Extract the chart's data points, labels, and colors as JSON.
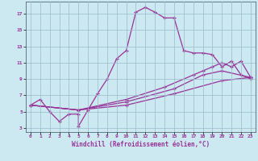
{
  "xlabel": "Windchill (Refroidissement éolien,°C)",
  "bg_color": "#cce8f0",
  "line_color": "#993399",
  "grid_color": "#99bbcc",
  "xlim": [
    -0.5,
    23.5
  ],
  "ylim": [
    2.5,
    18.5
  ],
  "xticks": [
    0,
    1,
    2,
    3,
    4,
    5,
    6,
    7,
    8,
    9,
    10,
    11,
    12,
    13,
    14,
    15,
    16,
    17,
    18,
    19,
    20,
    21,
    22,
    23
  ],
  "yticks": [
    3,
    5,
    7,
    9,
    11,
    13,
    15,
    17
  ],
  "curve1_x": [
    0,
    1,
    2,
    3,
    4,
    5,
    5,
    6,
    7,
    8,
    9,
    10,
    11,
    12,
    13,
    14,
    15,
    16,
    17,
    18,
    19,
    20,
    21,
    22,
    23
  ],
  "curve1_y": [
    5.8,
    6.5,
    5.0,
    3.8,
    4.7,
    4.7,
    3.2,
    5.2,
    7.2,
    9.0,
    11.5,
    12.5,
    17.2,
    17.8,
    17.2,
    16.5,
    16.5,
    12.5,
    12.2,
    12.2,
    12.0,
    10.5,
    11.2,
    9.5,
    9.0
  ],
  "curve2_x": [
    0,
    5,
    10,
    14,
    17,
    18,
    19,
    20,
    21,
    22,
    23
  ],
  "curve2_y": [
    5.8,
    5.2,
    6.5,
    8.0,
    9.5,
    10.0,
    10.5,
    11.0,
    10.5,
    11.2,
    9.2
  ],
  "curve3_x": [
    0,
    5,
    10,
    15,
    18,
    20,
    23
  ],
  "curve3_y": [
    5.8,
    5.2,
    6.2,
    7.8,
    9.5,
    10.0,
    9.2
  ],
  "curve4_x": [
    0,
    5,
    10,
    15,
    20,
    23
  ],
  "curve4_y": [
    5.8,
    5.2,
    5.8,
    7.2,
    8.8,
    9.2
  ]
}
